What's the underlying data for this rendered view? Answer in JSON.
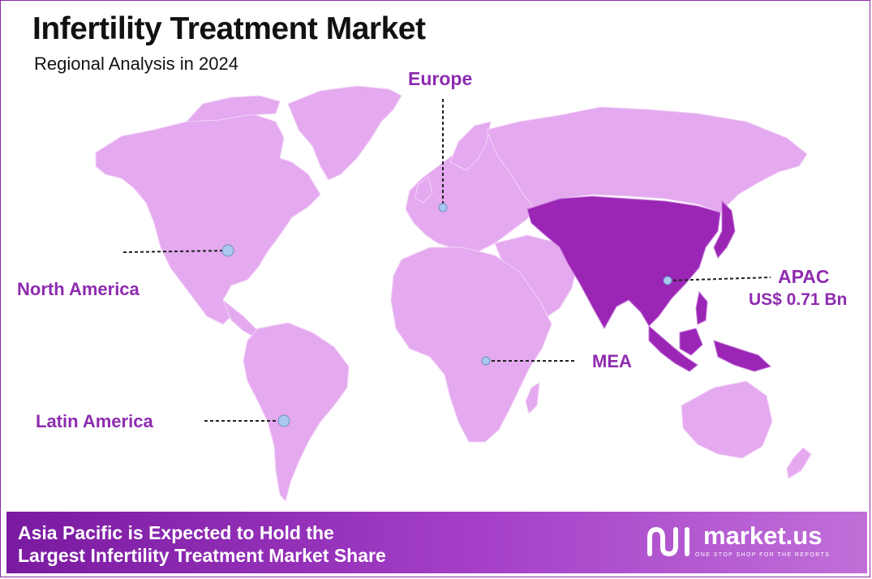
{
  "header": {
    "title": "Infertility Treatment Market",
    "subtitle": "Regional Analysis in 2024"
  },
  "map": {
    "highlighted_region": "APAC",
    "colors": {
      "land": "#e4a9ef",
      "highlight": "#9b25b5",
      "marker": "#a9c8ee",
      "label": "#8e2bb0"
    },
    "regions": [
      {
        "id": "europe",
        "label": "Europe"
      },
      {
        "id": "north-america",
        "label": "North America"
      },
      {
        "id": "apac",
        "label": "APAC",
        "value": "US$ 0.71 Bn"
      },
      {
        "id": "mea",
        "label": "MEA"
      },
      {
        "id": "latin-america",
        "label": "Latin America"
      }
    ]
  },
  "footer": {
    "line1": "Asia Pacific is Expected to Hold the",
    "line2": "Largest Infertility Treatment Market Share",
    "brand": "market.us",
    "tagline": "ONE STOP SHOP FOR THE REPORTS"
  }
}
